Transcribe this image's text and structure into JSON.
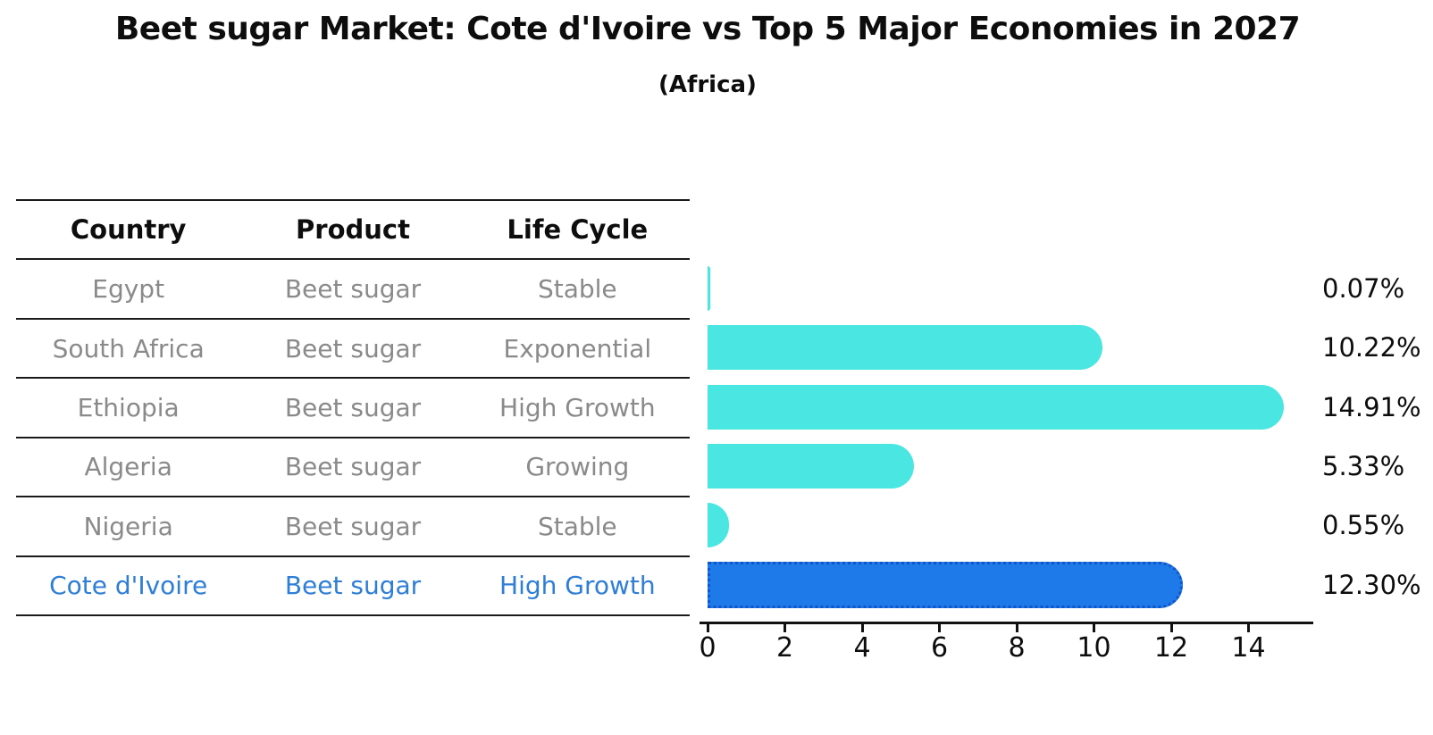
{
  "title": "Beet sugar Market: Cote d'Ivoire vs Top 5 Major Economies in 2027",
  "subtitle": "(Africa)",
  "colors": {
    "bar": "#49e6e2",
    "highlight_bar": "#1e7ae8",
    "highlight_bar_border": "#1255c8",
    "row_text": "#8a8a8a",
    "highlight_row_text": "#2e7ed8",
    "table_line": "#1a1a1a",
    "label_text": "#0d0d0d"
  },
  "table": {
    "headers": [
      "Country",
      "Product",
      "Life Cycle"
    ],
    "rows": [
      {
        "country": "Egypt",
        "product": "Beet sugar",
        "life_cycle": "Stable"
      },
      {
        "country": "South Africa",
        "product": "Beet sugar",
        "life_cycle": "Exponential"
      },
      {
        "country": "Ethiopia",
        "product": "Beet sugar",
        "life_cycle": "High Growth"
      },
      {
        "country": "Algeria",
        "product": "Beet sugar",
        "life_cycle": "Growing"
      },
      {
        "country": "Nigeria",
        "product": "Beet sugar",
        "life_cycle": "Stable"
      },
      {
        "country": "Cote d'Ivoire",
        "product": "Beet sugar",
        "life_cycle": "High Growth"
      }
    ]
  },
  "chart_data": {
    "type": "bar",
    "orientation": "horizontal",
    "title": "Beet sugar Market: Cote d'Ivoire vs Top 5 Major Economies in 2027",
    "subtitle": "(Africa)",
    "categories": [
      "Egypt",
      "South Africa",
      "Ethiopia",
      "Algeria",
      "Nigeria",
      "Cote d'Ivoire"
    ],
    "values": [
      0.07,
      10.22,
      14.91,
      5.33,
      0.55,
      12.3
    ],
    "value_labels": [
      "0.07%",
      "10.22%",
      "14.91%",
      "5.33%",
      "0.55%",
      "12.30%"
    ],
    "highlight_index": 5,
    "xlim": [
      0,
      15.7
    ],
    "xticks": [
      0,
      2,
      4,
      6,
      8,
      10,
      12,
      14
    ],
    "grid": false,
    "legend": false
  }
}
